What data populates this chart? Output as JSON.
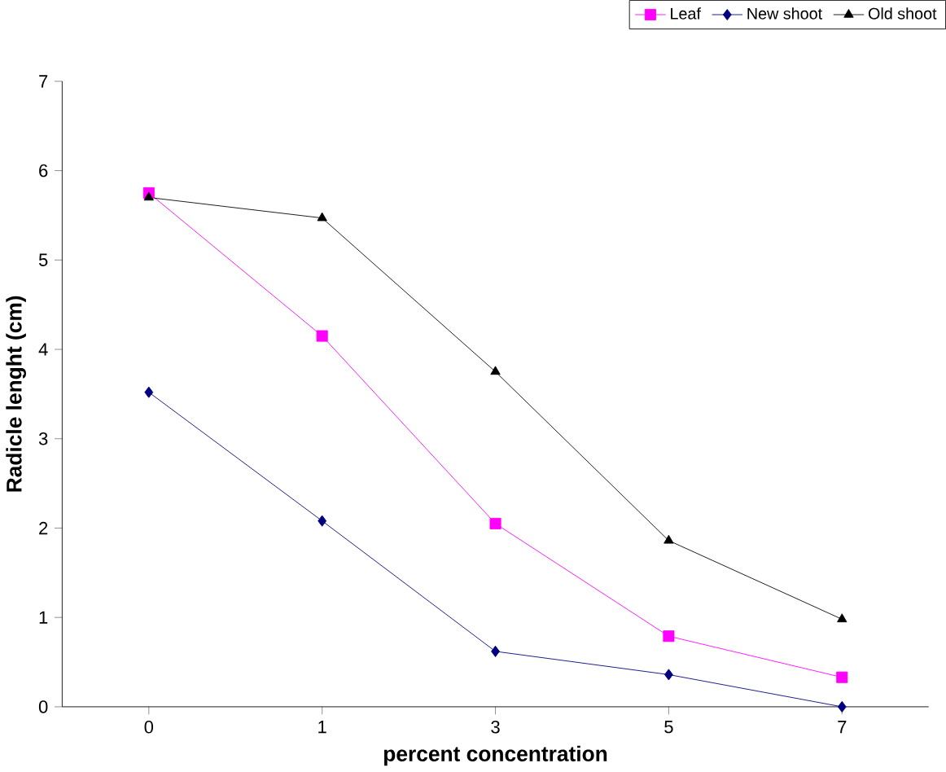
{
  "chart_data": {
    "type": "line",
    "xlabel": "percent concentration",
    "ylabel": "Radicle lenght (cm)",
    "categories": [
      "0",
      "1",
      "3",
      "5",
      "7"
    ],
    "ylim": [
      0,
      7
    ],
    "yticks": [
      0,
      1,
      2,
      3,
      4,
      5,
      6,
      7
    ],
    "grid": false,
    "legend": "top right",
    "series": [
      {
        "name": "Leaf",
        "color": "#ff00ff",
        "marker": "square",
        "values": [
          5.75,
          4.15,
          2.05,
          0.79,
          0.33
        ]
      },
      {
        "name": "New shoot",
        "color": "#000080",
        "marker": "diamond",
        "values": [
          3.52,
          2.08,
          0.62,
          0.36,
          0.0
        ]
      },
      {
        "name": "Old shoot",
        "color": "#000000",
        "marker": "triangle",
        "values": [
          5.7,
          5.47,
          3.75,
          1.86,
          0.98
        ]
      }
    ]
  }
}
